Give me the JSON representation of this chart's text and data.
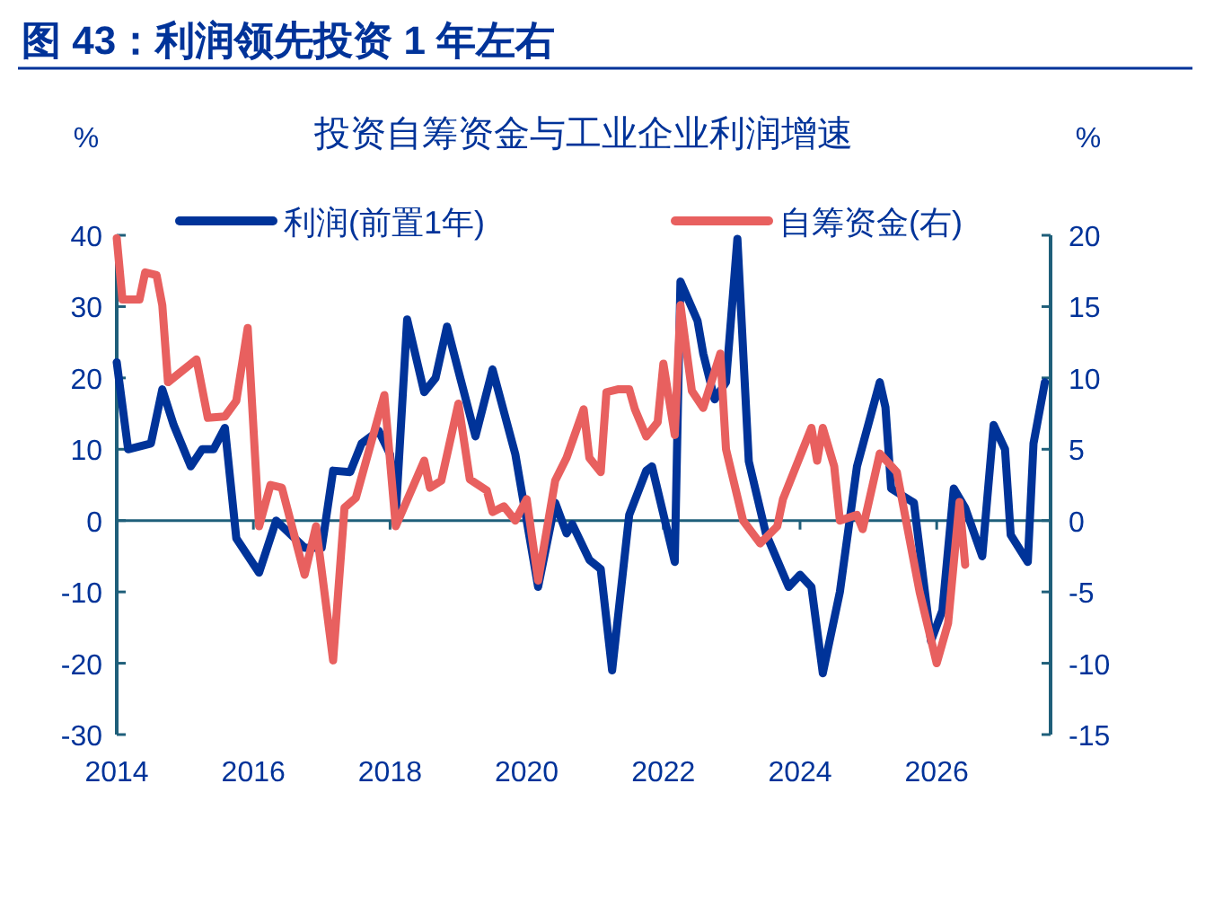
{
  "chart_data": {
    "type": "line",
    "title": "图 43：利润领先投资 1 年左右",
    "subtitle": "投资自筹资金与工业企业利润增速",
    "ylabel": "%",
    "y2label": "%",
    "xlim": [
      "2014-01",
      "2027-09"
    ],
    "xticks": [
      {
        "value": "2014-01",
        "label": "2014"
      },
      {
        "value": "2016-01",
        "label": "2016"
      },
      {
        "value": "2018-01",
        "label": "2018"
      },
      {
        "value": "2020-01",
        "label": "2020"
      },
      {
        "value": "2022-01",
        "label": "2022"
      },
      {
        "value": "2024-01",
        "label": "2024"
      },
      {
        "value": "2026-01",
        "label": "2026"
      }
    ],
    "ylim": [
      -30,
      40
    ],
    "yticks": [
      -30,
      -20,
      -10,
      0,
      10,
      20,
      30,
      40
    ],
    "y2lim": [
      -15,
      20
    ],
    "y2ticks": [
      -15,
      -10,
      -5,
      0,
      5,
      10,
      15,
      20
    ],
    "grid": false,
    "ref_lines": [
      {
        "axis": "y",
        "value": 0,
        "color": "#1f5f7a"
      }
    ],
    "legend": "top",
    "marker": "none",
    "line_style": "solid",
    "series": [
      {
        "name": "利润(前置1年)",
        "color": "#003399",
        "axis": "y",
        "x": [
          "2014-01",
          "2014-03",
          "2014-07",
          "2014-09",
          "2014-11",
          "2015-02",
          "2015-04",
          "2015-06",
          "2015-08",
          "2015-10",
          "2016-02",
          "2016-05",
          "2016-10",
          "2017-01",
          "2017-03",
          "2017-06",
          "2017-08",
          "2017-11",
          "2018-01",
          "2018-02",
          "2018-04",
          "2018-07",
          "2018-09",
          "2018-11",
          "2019-01",
          "2019-04",
          "2019-07",
          "2019-11",
          "2020-03",
          "2020-06",
          "2020-08",
          "2020-09",
          "2020-12",
          "2021-02",
          "2021-04",
          "2021-07",
          "2021-10",
          "2021-11",
          "2022-03",
          "2022-04",
          "2022-07",
          "2022-08",
          "2022-10",
          "2022-12",
          "2023-02",
          "2023-04",
          "2023-07",
          "2023-11",
          "2024-01",
          "2024-03",
          "2024-05",
          "2024-08",
          "2024-11",
          "2025-03",
          "2025-04",
          "2025-05",
          "2025-09",
          "2025-12",
          "2026-02",
          "2026-04",
          "2026-06",
          "2026-09",
          "2026-11",
          "2027-01",
          "2027-02",
          "2027-05",
          "2027-06",
          "2027-08"
        ],
        "values": [
          22.2,
          10,
          10.8,
          18.4,
          13.4,
          7.6,
          10,
          10,
          13,
          -2.5,
          -7.3,
          0,
          -3.8,
          -3.8,
          7,
          6.8,
          10.8,
          12.6,
          9.3,
          0.8,
          28.2,
          18,
          20,
          27.2,
          21,
          11.8,
          21.2,
          9.3,
          -9.3,
          2.5,
          -1.8,
          -0.5,
          -5.5,
          -6.8,
          -21,
          0.8,
          7,
          7.6,
          -5.8,
          33.5,
          28,
          23.4,
          17,
          19.4,
          39.5,
          8.3,
          -1.8,
          -9.3,
          -7.6,
          -9.3,
          -21.4,
          -10,
          7.6,
          19.4,
          15.9,
          4.5,
          2.5,
          -16.9,
          -12.6,
          4.5,
          1.8,
          -5,
          13.4,
          10,
          -2,
          -5.8,
          10.8,
          19.4
        ]
      },
      {
        "name": "自筹资金(右)",
        "color": "#e8605f",
        "axis": "y2",
        "x": [
          "2014-01",
          "2014-02",
          "2014-05",
          "2014-06",
          "2014-08",
          "2014-09",
          "2014-10",
          "2015-03",
          "2015-05",
          "2015-08",
          "2015-10",
          "2015-12",
          "2016-02",
          "2016-04",
          "2016-06",
          "2016-10",
          "2016-12",
          "2017-03",
          "2017-05",
          "2017-07",
          "2017-12",
          "2018-02",
          "2018-07",
          "2018-08",
          "2018-10",
          "2019-01",
          "2019-03",
          "2019-06",
          "2019-07",
          "2019-09",
          "2019-11",
          "2020-01",
          "2020-03",
          "2020-06",
          "2020-08",
          "2020-11",
          "2020-12",
          "2021-02",
          "2021-03",
          "2021-05",
          "2021-07",
          "2021-08",
          "2021-10",
          "2021-12",
          "2022-01",
          "2022-03",
          "2022-04",
          "2022-06",
          "2022-08",
          "2022-11",
          "2022-12",
          "2023-03",
          "2023-06",
          "2023-09",
          "2023-10",
          "2024-03",
          "2024-04",
          "2024-05",
          "2024-07",
          "2024-08",
          "2024-11",
          "2024-12",
          "2025-03",
          "2025-06",
          "2025-10",
          "2026-01",
          "2026-03",
          "2026-05",
          "2026-06"
        ],
        "values": [
          19.8,
          15.5,
          15.5,
          17.4,
          17.2,
          15.1,
          9.7,
          11.3,
          7.2,
          7.3,
          8.4,
          13.5,
          -0.4,
          2.5,
          2.3,
          -3.8,
          -0.4,
          -9.8,
          0.9,
          1.6,
          8.8,
          -0.4,
          4.2,
          2.3,
          2.8,
          8.2,
          2.9,
          2.1,
          0.6,
          1,
          0,
          1.5,
          -4.2,
          2.8,
          4.4,
          7.8,
          4.4,
          3.4,
          9,
          9.2,
          9.2,
          7.8,
          5.9,
          6.9,
          11,
          6,
          15.1,
          9.1,
          7.9,
          11.7,
          5,
          0,
          -1.6,
          -0.4,
          1.5,
          6.5,
          4.2,
          6.5,
          3.8,
          0,
          0.4,
          -0.6,
          4.7,
          3.4,
          -5,
          -10,
          -7.2,
          1.3,
          -3.1
        ]
      }
    ]
  }
}
